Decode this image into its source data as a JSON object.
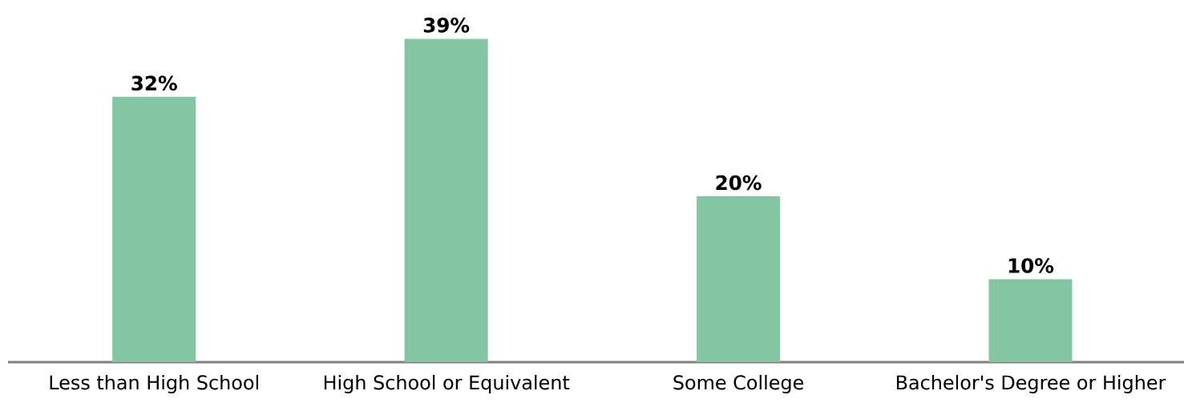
{
  "chart_data": {
    "type": "bar",
    "categories": [
      "Less than High School",
      "High School or Equivalent",
      "Some College",
      "Bachelor's Degree or Higher"
    ],
    "values": [
      32,
      39,
      20,
      10
    ],
    "value_labels": [
      "32%",
      "39%",
      "20%",
      "10%"
    ],
    "color": "#84c6a2"
  }
}
